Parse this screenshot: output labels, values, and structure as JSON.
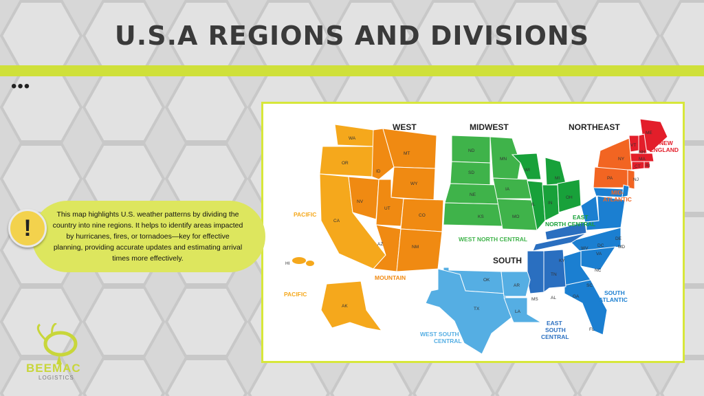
{
  "slide": {
    "title": "U.S.A REGIONS AND DIVISIONS",
    "ellipsis": "•••",
    "note": "This map highlights U.S. weather patterns by dividing the country into nine regions. It helps to identify areas impacted by hurricanes, fires, or tornadoes—key for effective planning, providing accurate updates and estimating arrival times more effectively.",
    "warning_glyph": "!",
    "logo": {
      "brand": "BEEMAC",
      "sub": "LOGISTICS"
    }
  },
  "map": {
    "regions": {
      "west": "WEST",
      "midwest": "MIDWEST",
      "northeast": "NORTHEAST",
      "south": "SOUTH"
    },
    "divisions": {
      "pacific_1": "PACIFIC",
      "mountain": "MOUNTAIN",
      "pacific_2": "PACIFIC",
      "west_north_central": "WEST NORTH CENTRAL",
      "east_north_central_1": "EAST",
      "east_north_central_2": "NORTH CENTRAL",
      "new_england_1": "NEW",
      "new_england_2": "ENGLAND",
      "mid_atlantic_1": "MID-",
      "mid_atlantic_2": "ATLANTIC",
      "south_atlantic_1": "SOUTH",
      "south_atlantic_2": "ATLANTIC",
      "east_south_central_1": "EAST",
      "east_south_central_2": "SOUTH",
      "east_south_central_3": "CENTRAL",
      "west_south_central_1": "WEST SOUTH",
      "west_south_central_2": "CENTRAL"
    },
    "colors": {
      "pacific": "#f5a81c",
      "mountain": "#f08a12",
      "west_north_central": "#3fb34a",
      "east_north_central": "#18a13a",
      "new_england": "#e31e2a",
      "mid_atlantic": "#f26522",
      "south_atlantic": "#1b7fd1",
      "east_south_central": "#2a6fc0",
      "west_south_central": "#55aee3"
    },
    "states": {
      "wa": "WA",
      "or": "OR",
      "ca": "CA",
      "nv": "NV",
      "id": "ID",
      "mt": "MT",
      "wy": "WY",
      "ut": "UT",
      "co": "CO",
      "az": "AZ",
      "nm": "NM",
      "hi": "HI",
      "ak": "AK",
      "nd": "ND",
      "sd": "SD",
      "ne": "NE",
      "ks": "KS",
      "mn": "MN",
      "ia": "IA",
      "mo": "MO",
      "wi": "WI",
      "mi": "MI",
      "il": "IL",
      "in": "IN",
      "oh": "OH",
      "me": "ME",
      "vt": "VT",
      "nh": "NH",
      "ma": "MA",
      "ct": "CT",
      "ri": "RI",
      "ny": "NY",
      "pa": "PA",
      "nj": "NJ",
      "de": "DE",
      "md": "MD",
      "dc": "DC",
      "wv": "WV",
      "va": "VA",
      "nc": "NC",
      "sc": "SC",
      "ga": "GA",
      "fl": "FL",
      "ky": "KY",
      "tn": "TN",
      "ms": "MS",
      "al": "AL",
      "ok": "OK",
      "tx": "TX",
      "ar": "AR",
      "la": "LA"
    }
  }
}
